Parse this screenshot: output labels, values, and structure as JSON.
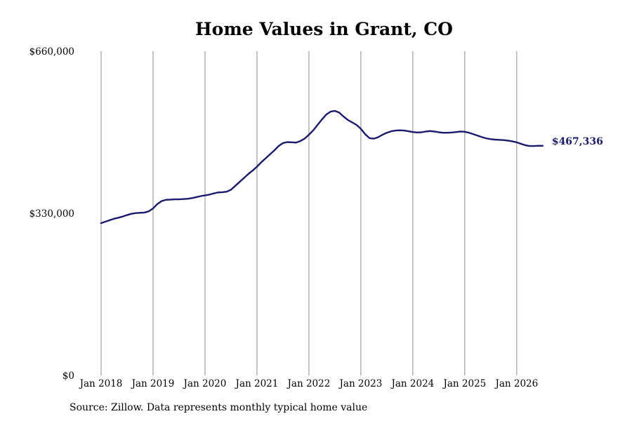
{
  "chart_data": {
    "type": "line",
    "title": "Home Values in Grant, CO",
    "source": "Source: Zillow. Data represents monthly typical home value",
    "end_label": "$467,336",
    "line_color": "#1a1a6e",
    "grid_color": "#8c8c8c",
    "ylim": [
      0,
      660000
    ],
    "y_ticks": [
      {
        "value": 0,
        "label": "$0"
      },
      {
        "value": 330000,
        "label": "$330,000"
      },
      {
        "value": 660000,
        "label": "$660,000"
      }
    ],
    "x_range": [
      "2018-01",
      "2026-08"
    ],
    "x_ticks": [
      {
        "value": "2018-01",
        "label": "Jan 2018"
      },
      {
        "value": "2019-01",
        "label": "Jan 2019"
      },
      {
        "value": "2020-01",
        "label": "Jan 2020"
      },
      {
        "value": "2021-01",
        "label": "Jan 2021"
      },
      {
        "value": "2022-01",
        "label": "Jan 2022"
      },
      {
        "value": "2023-01",
        "label": "Jan 2023"
      },
      {
        "value": "2024-01",
        "label": "Jan 2024"
      },
      {
        "value": "2025-01",
        "label": "Jan 2025"
      },
      {
        "value": "2026-01",
        "label": "Jan 2026"
      }
    ],
    "series": [
      {
        "points": [
          [
            "2018-01",
            310000
          ],
          [
            "2018-02",
            313000
          ],
          [
            "2018-03",
            316000
          ],
          [
            "2018-04",
            319000
          ],
          [
            "2018-05",
            321000
          ],
          [
            "2018-06",
            323500
          ],
          [
            "2018-07",
            326500
          ],
          [
            "2018-08",
            329000
          ],
          [
            "2018-09",
            330500
          ],
          [
            "2018-10",
            331000
          ],
          [
            "2018-11",
            331500
          ],
          [
            "2018-12",
            334000
          ],
          [
            "2019-01",
            340000
          ],
          [
            "2019-02",
            349000
          ],
          [
            "2019-03",
            355000
          ],
          [
            "2019-04",
            357500
          ],
          [
            "2019-05",
            358000
          ],
          [
            "2019-06",
            358500
          ],
          [
            "2019-07",
            358500
          ],
          [
            "2019-08",
            359000
          ],
          [
            "2019-09",
            359500
          ],
          [
            "2019-10",
            361000
          ],
          [
            "2019-11",
            363000
          ],
          [
            "2019-12",
            365000
          ],
          [
            "2020-01",
            366500
          ],
          [
            "2020-02",
            368000
          ],
          [
            "2020-03",
            370500
          ],
          [
            "2020-04",
            372500
          ],
          [
            "2020-05",
            373000
          ],
          [
            "2020-06",
            374000
          ],
          [
            "2020-07",
            378000
          ],
          [
            "2020-08",
            386000
          ],
          [
            "2020-09",
            394000
          ],
          [
            "2020-10",
            402000
          ],
          [
            "2020-11",
            410000
          ],
          [
            "2020-12",
            417000
          ],
          [
            "2021-01",
            425000
          ],
          [
            "2021-02",
            434000
          ],
          [
            "2021-03",
            442000
          ],
          [
            "2021-04",
            450000
          ],
          [
            "2021-05",
            458000
          ],
          [
            "2021-06",
            467000
          ],
          [
            "2021-07",
            473000
          ],
          [
            "2021-08",
            475000
          ],
          [
            "2021-09",
            474500
          ],
          [
            "2021-10",
            474000
          ],
          [
            "2021-11",
            477000
          ],
          [
            "2021-12",
            482000
          ],
          [
            "2022-01",
            490000
          ],
          [
            "2022-02",
            499000
          ],
          [
            "2022-03",
            510000
          ],
          [
            "2022-04",
            521000
          ],
          [
            "2022-05",
            531000
          ],
          [
            "2022-06",
            537000
          ],
          [
            "2022-07",
            538500
          ],
          [
            "2022-08",
            535000
          ],
          [
            "2022-09",
            527000
          ],
          [
            "2022-10",
            520000
          ],
          [
            "2022-11",
            515000
          ],
          [
            "2022-12",
            510000
          ],
          [
            "2023-01",
            502000
          ],
          [
            "2023-02",
            491000
          ],
          [
            "2023-03",
            483000
          ],
          [
            "2023-04",
            482000
          ],
          [
            "2023-05",
            485000
          ],
          [
            "2023-06",
            490000
          ],
          [
            "2023-07",
            494000
          ],
          [
            "2023-08",
            497000
          ],
          [
            "2023-09",
            498500
          ],
          [
            "2023-10",
            499000
          ],
          [
            "2023-11",
            498500
          ],
          [
            "2023-12",
            497000
          ],
          [
            "2024-01",
            495500
          ],
          [
            "2024-02",
            494500
          ],
          [
            "2024-03",
            495000
          ],
          [
            "2024-04",
            496500
          ],
          [
            "2024-05",
            497500
          ],
          [
            "2024-06",
            496500
          ],
          [
            "2024-07",
            495000
          ],
          [
            "2024-08",
            494000
          ],
          [
            "2024-09",
            494000
          ],
          [
            "2024-10",
            494500
          ],
          [
            "2024-11",
            495500
          ],
          [
            "2024-12",
            496500
          ],
          [
            "2025-01",
            496000
          ],
          [
            "2025-02",
            494000
          ],
          [
            "2025-03",
            491000
          ],
          [
            "2025-04",
            488000
          ],
          [
            "2025-05",
            485000
          ],
          [
            "2025-06",
            482500
          ],
          [
            "2025-07",
            481000
          ],
          [
            "2025-08",
            480000
          ],
          [
            "2025-09",
            479500
          ],
          [
            "2025-10",
            479000
          ],
          [
            "2025-11",
            478000
          ],
          [
            "2025-12",
            476500
          ],
          [
            "2026-01",
            474500
          ],
          [
            "2026-02",
            471500
          ],
          [
            "2026-03",
            468500
          ],
          [
            "2026-04",
            467000
          ],
          [
            "2026-05",
            467000
          ],
          [
            "2026-06",
            467500
          ],
          [
            "2026-07",
            467336
          ]
        ]
      }
    ]
  }
}
